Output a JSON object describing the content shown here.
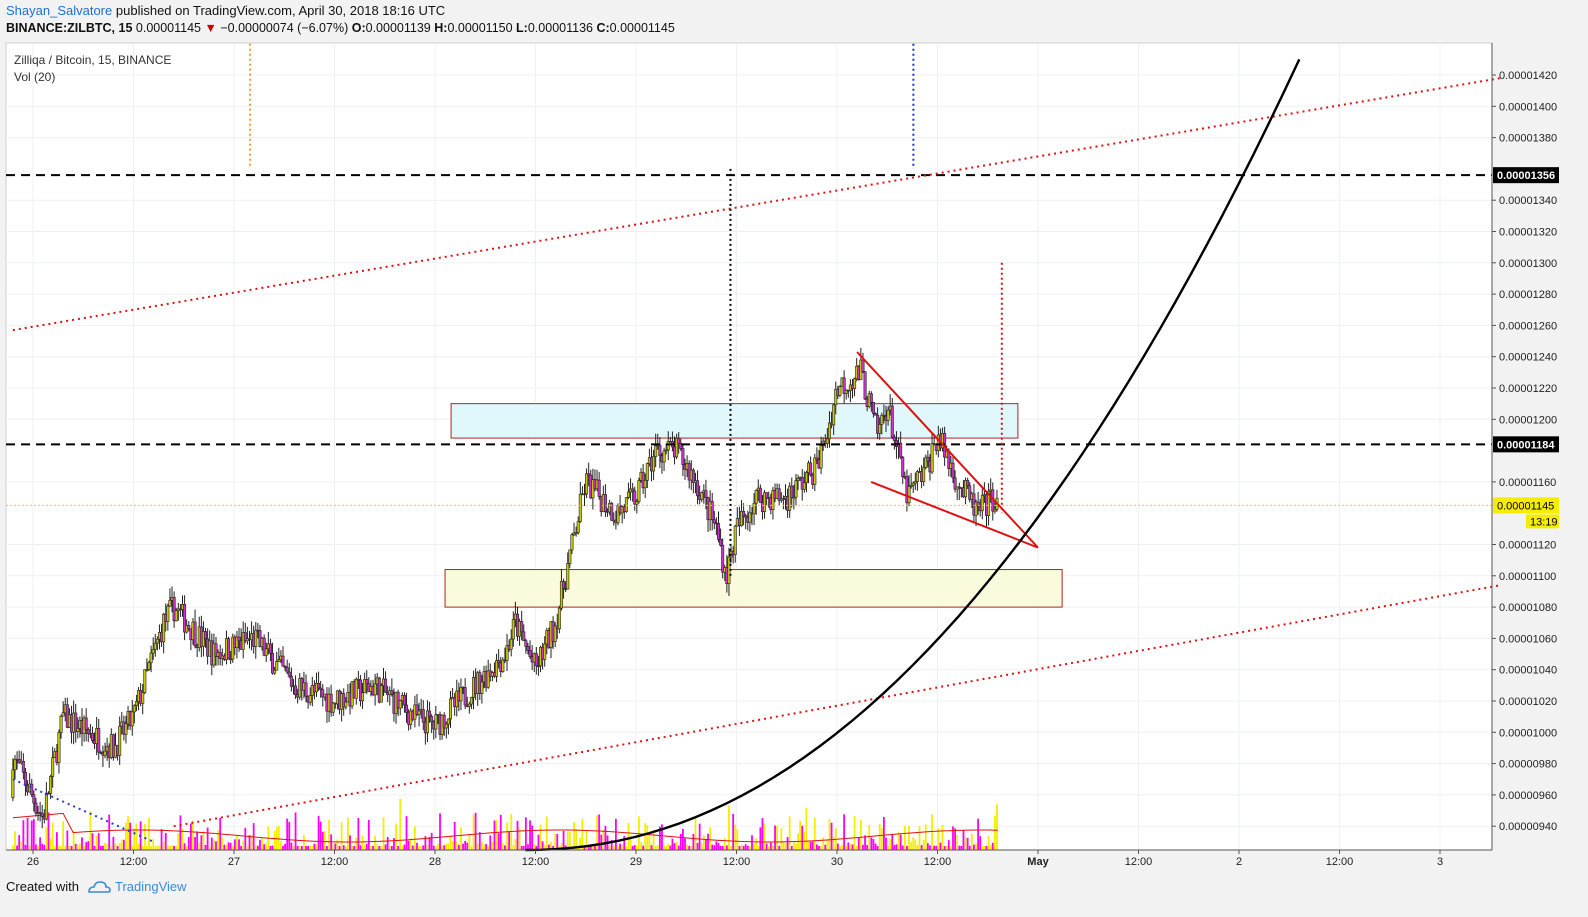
{
  "header": {
    "author": "Shayan_Salvatore",
    "published_text": "published on TradingView.com, April 30, 2018 18:16 UTC",
    "symbol": "BINANCE:ZILBTC, 15",
    "last": "0.00001145",
    "change": "−0.00000074 (−6.07%)",
    "open_label": "O:",
    "open": "0.00001139",
    "high_label": "H:",
    "high": "0.00001150",
    "low_label": "L:",
    "low": "0.00001136",
    "close_label": "C:",
    "close": "0.00001145"
  },
  "legend": {
    "title": "Zilliqa / Bitcoin, 15, BINANCE",
    "volume": "Vol (20)"
  },
  "footer": {
    "created_with": "Created with",
    "brand": "TradingView"
  },
  "colors": {
    "up": "#c8c800",
    "down": "#cc33cc",
    "black_curve": "#000000",
    "red": "#e01010",
    "volume_up": "#f4ee00",
    "volume_down": "#ff00ff"
  },
  "chart_data": {
    "type": "candlestick",
    "interval": "15",
    "y_unit": "BTC",
    "ylim": [
      9.2e-06,
      1.44e-05
    ],
    "y_ticks": [
      "0.00001420",
      "0.00001400",
      "0.00001380",
      "0.00001340",
      "0.00001320",
      "0.00001300",
      "0.00001280",
      "0.00001260",
      "0.00001240",
      "0.00001220",
      "0.00001200",
      "0.00001160",
      "0.00001120",
      "0.00001100",
      "0.00001080",
      "0.00001060",
      "0.00001040",
      "0.00001020",
      "0.00001000",
      "0.00000980",
      "0.00000960",
      "0.00000940"
    ],
    "y_tick_values": [
      1.42e-05,
      1.4e-05,
      1.38e-05,
      1.34e-05,
      1.32e-05,
      1.3e-05,
      1.28e-05,
      1.26e-05,
      1.24e-05,
      1.22e-05,
      1.2e-05,
      1.16e-05,
      1.12e-05,
      1.1e-05,
      1.08e-05,
      1.06e-05,
      1.04e-05,
      1.02e-05,
      1e-05,
      9.8e-06,
      9.6e-06,
      9.4e-06
    ],
    "x_ticks": [
      {
        "label": "26",
        "day": 0,
        "bold": false
      },
      {
        "label": "12:00",
        "day": 0.5,
        "bold": false
      },
      {
        "label": "27",
        "day": 1,
        "bold": false
      },
      {
        "label": "12:00",
        "day": 1.5,
        "bold": false
      },
      {
        "label": "28",
        "day": 2,
        "bold": false
      },
      {
        "label": "12:00",
        "day": 2.5,
        "bold": false
      },
      {
        "label": "29",
        "day": 3,
        "bold": false
      },
      {
        "label": "12:00",
        "day": 3.5,
        "bold": false
      },
      {
        "label": "30",
        "day": 4,
        "bold": false
      },
      {
        "label": "12:00",
        "day": 4.5,
        "bold": false
      },
      {
        "label": "May",
        "day": 5,
        "bold": true
      },
      {
        "label": "12:00",
        "day": 5.5,
        "bold": false
      },
      {
        "label": "2",
        "day": 6,
        "bold": false
      },
      {
        "label": "12:00",
        "day": 6.5,
        "bold": false
      },
      {
        "label": "3",
        "day": 7,
        "bold": false
      }
    ],
    "price_path": [
      [
        -0.1,
        9.85e-06
      ],
      [
        0.05,
        9.45e-06
      ],
      [
        0.15,
        1.01e-05
      ],
      [
        0.4,
        9.9e-06
      ],
      [
        0.5,
        1.01e-05
      ],
      [
        0.65,
        1.07e-05
      ],
      [
        0.7,
        1.08e-05
      ],
      [
        0.9,
        1.05e-05
      ],
      [
        1.1,
        1.06e-05
      ],
      [
        1.3,
        1.03e-05
      ],
      [
        1.5,
        1.02e-05
      ],
      [
        1.7,
        1.03e-05
      ],
      [
        1.9,
        1.01e-05
      ],
      [
        2.0,
        1.004e-05
      ],
      [
        2.2,
        1.03e-05
      ],
      [
        2.35,
        1.05e-05
      ],
      [
        2.4,
        1.07e-05
      ],
      [
        2.5,
        1.04e-05
      ],
      [
        2.6,
        1.07e-05
      ],
      [
        2.7,
        1.13e-05
      ],
      [
        2.75,
        1.16e-05
      ],
      [
        2.9,
        1.14e-05
      ],
      [
        3.0,
        1.15e-05
      ],
      [
        3.1,
        1.18e-05
      ],
      [
        3.2,
        1.18e-05
      ],
      [
        3.3,
        1.16e-05
      ],
      [
        3.4,
        1.13e-05
      ],
      [
        3.45,
        1.1e-05
      ],
      [
        3.5,
        1.13e-05
      ],
      [
        3.6,
        1.15e-05
      ],
      [
        3.75,
        1.15e-05
      ],
      [
        3.9,
        1.17e-05
      ],
      [
        3.95,
        1.19e-05
      ],
      [
        4.0,
        1.22e-05
      ],
      [
        4.12,
        1.23e-05
      ],
      [
        4.2,
        1.19e-05
      ],
      [
        4.25,
        1.21e-05
      ],
      [
        4.35,
        1.15e-05
      ],
      [
        4.45,
        1.17e-05
      ],
      [
        4.5,
        1.19e-05
      ],
      [
        4.6,
        1.16e-05
      ],
      [
        4.7,
        1.14e-05
      ],
      [
        4.78,
        1.15e-05
      ],
      [
        4.8,
        1.145e-05
      ]
    ],
    "last_price": 1.145e-05,
    "last_price_label": "0.00001145",
    "countdown": "13:19",
    "levels": [
      {
        "price": 1.356e-05,
        "label": "0.00001356",
        "style": "dashed"
      },
      {
        "price": 1.184e-05,
        "label": "0.00001184",
        "style": "dashed"
      }
    ],
    "zones": [
      {
        "from_day": 2.08,
        "to_day": 4.9,
        "top": 1.21e-05,
        "bottom": 1.188e-05,
        "fill": "#e0f8fc"
      },
      {
        "from_day": 2.05,
        "to_day": 5.12,
        "top": 1.104e-05,
        "bottom": 1.08e-05,
        "fill": "#fafadc"
      }
    ],
    "wedge": [
      {
        "from": [
          4.1,
          1.243e-05
        ],
        "to": [
          5.0,
          1.118e-05
        ]
      },
      {
        "from": [
          4.17,
          1.16e-05
        ],
        "to": [
          5.0,
          1.118e-05
        ]
      }
    ],
    "channel_lines": [
      {
        "from": [
          -0.1,
          1.257e-05
        ],
        "to": [
          7.3,
          1.418e-05
        ]
      },
      {
        "from": [
          0.7,
          9.4e-06
        ],
        "to": [
          7.3,
          1.094e-05
        ]
      }
    ],
    "parabola": {
      "from_day": 2.45,
      "to_day": 6.3,
      "apex_price": 1.43e-05
    },
    "vertical_markers": [
      {
        "day": 1.08,
        "color": "#f0a020",
        "from": 1.44e-05,
        "to": 1.36e-05
      },
      {
        "day": 4.38,
        "color": "#2030d0",
        "from": 1.44e-05,
        "to": 1.36e-05
      },
      {
        "day": 3.47,
        "color": "#000000",
        "from": 1.36e-05,
        "to": 1.1e-05
      },
      {
        "day": 4.82,
        "color": "#e01010",
        "from": 1.3e-05,
        "to": 1.14e-05
      }
    ],
    "volume_ma_label": "Vol (20)"
  }
}
